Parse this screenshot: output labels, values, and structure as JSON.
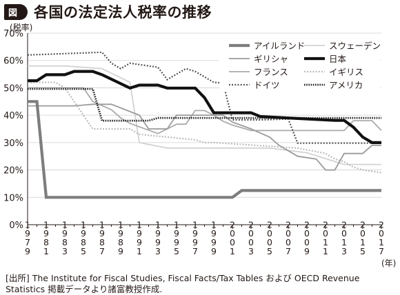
{
  "figure": {
    "badge": "図",
    "title": "各国の法定法人税率の推移",
    "source": "[出所] The Institute for Fiscal Studies, Fiscal Facts/Tax Tables および OECD Revenue Statistics 掲載データより諸富教授作成."
  },
  "chart_data": {
    "type": "line",
    "title": "各国の法定法人税率の推移",
    "ylabel": "(税率)",
    "xlabel": "(年)",
    "ylim": [
      0,
      70
    ],
    "y_ticks": [
      "0%",
      "10%",
      "20%",
      "30%",
      "40%",
      "50%",
      "60%",
      "70%"
    ],
    "x_ticks": [
      "1979",
      "1981",
      "1983",
      "1985",
      "1987",
      "1989",
      "1991",
      "1993",
      "1995",
      "1997",
      "1999",
      "2001",
      "2003",
      "2005",
      "2007",
      "2009",
      "2011",
      "2013",
      "2015",
      "2017"
    ],
    "xlim": [
      1979,
      2017
    ],
    "legend_position": "top-right",
    "series": [
      {
        "name": "アイルランド",
        "color": "#7d7d7d",
        "style": "solid-thick",
        "x": [
          1979,
          1980,
          1981,
          2001,
          2002,
          2017
        ],
        "y": [
          45,
          45,
          10,
          10,
          12.5,
          12.5
        ]
      },
      {
        "name": "スウェーデン",
        "color": "#d2d2d2",
        "style": "solid",
        "x": [
          1979,
          1983,
          1987,
          1990,
          1991,
          1994,
          1997,
          2001,
          2005,
          2009,
          2013,
          2017
        ],
        "y": [
          58,
          58,
          57,
          52,
          30,
          28,
          28,
          28,
          28,
          26.3,
          22,
          22
        ]
      },
      {
        "name": "ギリシャ",
        "color": "#9a9a9a",
        "style": "solid",
        "x": [
          1979,
          1984,
          1986,
          1988,
          1991,
          1992,
          1994,
          1995,
          1997,
          1998,
          2000,
          2001,
          2003,
          2005,
          2006,
          2008,
          2010,
          2011,
          2012,
          2013,
          2015,
          2016,
          2017
        ],
        "y": [
          43.4,
          43.4,
          44,
          44,
          40,
          35,
          35,
          40,
          40,
          40,
          40,
          37.5,
          35,
          32,
          29,
          25,
          24,
          20,
          20,
          26,
          26,
          29,
          29
        ]
      },
      {
        "name": "日本",
        "color": "#111111",
        "style": "solid-thick",
        "x": [
          1979,
          1980,
          1981,
          1983,
          1984,
          1986,
          1987,
          1990,
          1991,
          1993,
          1994,
          1997,
          1998,
          1999,
          2003,
          2004,
          2012,
          2013,
          2014,
          2015,
          2016,
          2017
        ],
        "y": [
          52.6,
          52.6,
          54.8,
          54.8,
          56,
          56,
          54.8,
          49.9,
          51,
          51,
          49.9,
          49.9,
          46.4,
          40.9,
          40.9,
          39.5,
          38.1,
          38.1,
          35.6,
          32,
          30,
          30
        ]
      },
      {
        "name": "フランス",
        "color": "#aaaaaa",
        "style": "solid",
        "x": [
          1979,
          1985,
          1986,
          1988,
          1989,
          1990,
          1993,
          1995,
          1996,
          1997,
          1998,
          1999,
          2000,
          2001,
          2002,
          2003,
          2013,
          2014,
          2016,
          2017
        ],
        "y": [
          50,
          50,
          45,
          42,
          39,
          37,
          33.3,
          36.7,
          36.7,
          41.7,
          41.7,
          40,
          37.8,
          36.4,
          35.4,
          34.4,
          34.4,
          38,
          38,
          34.4
        ]
      },
      {
        "name": "イギリス",
        "color": "#b4b4b4",
        "style": "dotted",
        "x": [
          1979,
          1982,
          1983,
          1984,
          1986,
          1987,
          1990,
          1991,
          1997,
          1998,
          1999,
          2008,
          2011,
          2012,
          2013,
          2014,
          2015,
          2017
        ],
        "y": [
          52,
          52,
          50,
          45,
          35,
          35,
          35,
          33,
          31,
          30,
          30,
          28,
          26,
          24,
          23,
          21,
          20,
          19
        ]
      },
      {
        "name": "ドイツ",
        "color": "#444444",
        "style": "dotted",
        "x": [
          1979,
          1987,
          1988,
          1989,
          1990,
          1993,
          1994,
          1996,
          1997,
          1999,
          2000,
          2001,
          2002,
          2004,
          2007,
          2008,
          2017
        ],
        "y": [
          62,
          63,
          59,
          57,
          59,
          57.5,
          53,
          57,
          56,
          52,
          51.8,
          38.3,
          38.3,
          38.3,
          38.6,
          29.8,
          29.8
        ]
      },
      {
        "name": "アメリカ",
        "color": "#222222",
        "style": "dotted-thick",
        "x": [
          1979,
          1986,
          1987,
          1992,
          1993,
          2017
        ],
        "y": [
          49.6,
          49.6,
          38,
          38,
          39,
          39
        ]
      }
    ]
  }
}
